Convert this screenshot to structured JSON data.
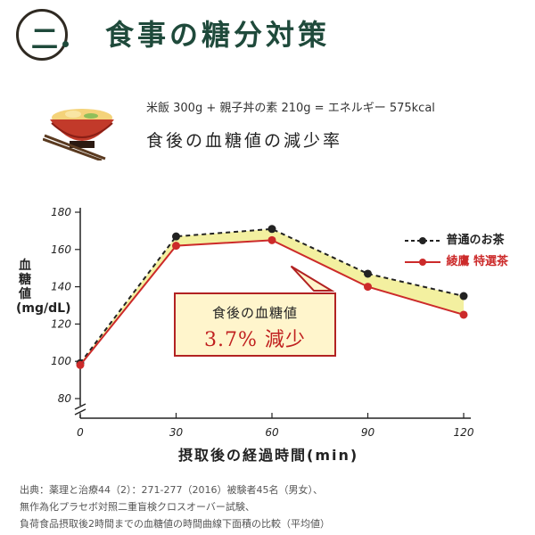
{
  "header": {
    "badge_text": "二",
    "title": "食事の糖分対策"
  },
  "meal": {
    "description": "米飯 300g + 親子丼の素 210g = エネルギー 575kcal"
  },
  "subtitle": "食後の血糖値の減少率",
  "callout": {
    "line1": "食後の血糖値",
    "line2": "3.7% 減少"
  },
  "source": {
    "lines": [
      "出典：薬理と治療44（2）：271-277（2016）被験者45名（男女）、",
      "無作為化プラセボ対照二重盲検クロスオーバー試験、",
      "負荷食品摂取後2時間までの血糖値の時間曲線下面積の比較（平均値）"
    ]
  },
  "colors": {
    "accent": "#1f4a3b",
    "red": "#cc2a2a",
    "black": "#222222",
    "fill": "#f3f0a0"
  },
  "chart_data": {
    "type": "line",
    "title": "食後の血糖値の減少率",
    "xlabel": "摂取後の経過時間(min)",
    "ylabel": "血糖値(mg/dL)",
    "x": [
      0,
      30,
      60,
      90,
      120
    ],
    "x_ticks": [
      "0",
      "30",
      "60",
      "90",
      "120"
    ],
    "y_ticks": [
      "80",
      "100",
      "120",
      "140",
      "160",
      "180"
    ],
    "ylim": [
      80,
      180
    ],
    "y_axis_break": true,
    "grid": false,
    "legend_position": "top-right",
    "series": [
      {
        "name": "普通のお茶",
        "values": [
          99,
          167,
          171,
          147,
          135
        ],
        "color": "#222222",
        "style": "dashed"
      },
      {
        "name": "綾鷹 特選茶",
        "values": [
          98,
          162,
          165,
          140,
          125
        ],
        "color": "#cc2a2a",
        "style": "solid"
      }
    ]
  }
}
